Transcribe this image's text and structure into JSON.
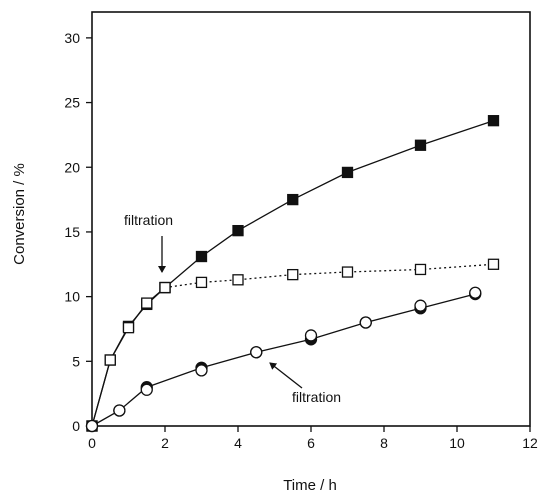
{
  "chart_data": {
    "type": "line",
    "xlabel": "Time / h",
    "ylabel": "Conversion / %",
    "xlim": [
      0,
      12
    ],
    "ylim": [
      0,
      32
    ],
    "xticks": [
      0,
      2,
      4,
      6,
      8,
      10,
      12
    ],
    "yticks": [
      0,
      5,
      10,
      15,
      20,
      25,
      30
    ],
    "grid": false,
    "series": [
      {
        "marker": "filled-square",
        "line": "solid",
        "x": [
          0,
          0.5,
          1.0,
          1.5,
          2.0,
          3.0,
          4.0,
          5.5,
          7.0,
          9.0,
          11.0
        ],
        "y": [
          0,
          5.1,
          7.7,
          9.4,
          10.7,
          13.1,
          15.1,
          17.5,
          19.6,
          21.7,
          23.6
        ]
      },
      {
        "marker": "open-square",
        "line": "solid",
        "x": [
          0,
          0.5,
          1.0,
          1.5,
          2.0
        ],
        "y": [
          0,
          5.1,
          7.6,
          9.5,
          10.7
        ]
      },
      {
        "marker": "open-square",
        "line": "dotted",
        "x": [
          2.0,
          3.0,
          4.0,
          5.5,
          7.0,
          9.0,
          11.0
        ],
        "y": [
          10.7,
          11.1,
          11.3,
          11.7,
          11.9,
          12.1,
          12.5
        ]
      },
      {
        "marker": "filled-circle",
        "line": "solid",
        "x": [
          0,
          0.75,
          1.5,
          3.0,
          4.5,
          6.0,
          7.5,
          9.0,
          10.5
        ],
        "y": [
          0,
          1.2,
          3.0,
          4.5,
          5.7,
          6.7,
          8.0,
          9.1,
          10.2
        ]
      },
      {
        "marker": "open-circle",
        "line": "none",
        "x": [
          0,
          0.75,
          1.5,
          3.0,
          4.5,
          6.0,
          7.5,
          9.0,
          10.5
        ],
        "y": [
          0,
          1.2,
          2.8,
          4.3,
          5.7,
          7.0,
          8.0,
          9.3,
          10.3
        ]
      }
    ],
    "annotations": [
      {
        "text": "filtration",
        "x": 2.0,
        "y": 10.7
      },
      {
        "text": "filtration",
        "x": 4.8,
        "y": 5.4
      }
    ]
  }
}
